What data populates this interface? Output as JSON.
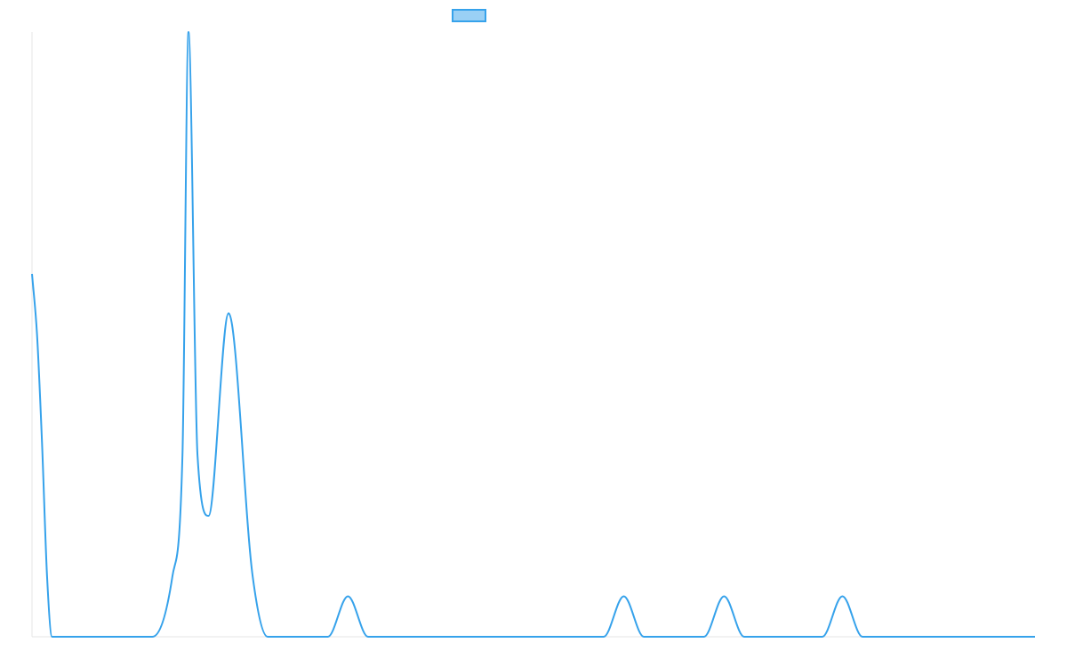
{
  "chart_data": {
    "type": "line",
    "title": "",
    "xlabel": "",
    "ylabel": "",
    "legend": {
      "position": "top",
      "entries": [
        {
          "name": "",
          "color": "#36a2eb",
          "fill": "#9ad0f5"
        }
      ]
    },
    "grid": false,
    "tension": "smooth",
    "xlim": [
      0,
      100
    ],
    "ylim": [
      0,
      100
    ],
    "series": [
      {
        "name": "",
        "color": "#36a2eb",
        "points": [
          [
            0,
            60
          ],
          [
            0.5,
            50
          ],
          [
            1.0,
            32
          ],
          [
            1.5,
            10
          ],
          [
            2,
            0
          ],
          [
            12,
            0
          ],
          [
            14,
            10
          ],
          [
            15,
            30
          ],
          [
            15.6,
            100
          ],
          [
            16.5,
            30
          ],
          [
            17.6,
            20
          ],
          [
            19.6,
            53.5
          ],
          [
            22,
            10
          ],
          [
            23.5,
            0
          ],
          [
            29.5,
            0
          ],
          [
            31.5,
            6.7
          ],
          [
            33.5,
            0
          ],
          [
            57,
            0
          ],
          [
            59,
            6.7
          ],
          [
            61,
            0
          ],
          [
            67,
            0
          ],
          [
            69,
            6.7
          ],
          [
            71,
            0
          ],
          [
            78.8,
            0
          ],
          [
            80.8,
            6.7
          ],
          [
            82.8,
            0
          ],
          [
            100,
            0
          ]
        ]
      }
    ]
  }
}
